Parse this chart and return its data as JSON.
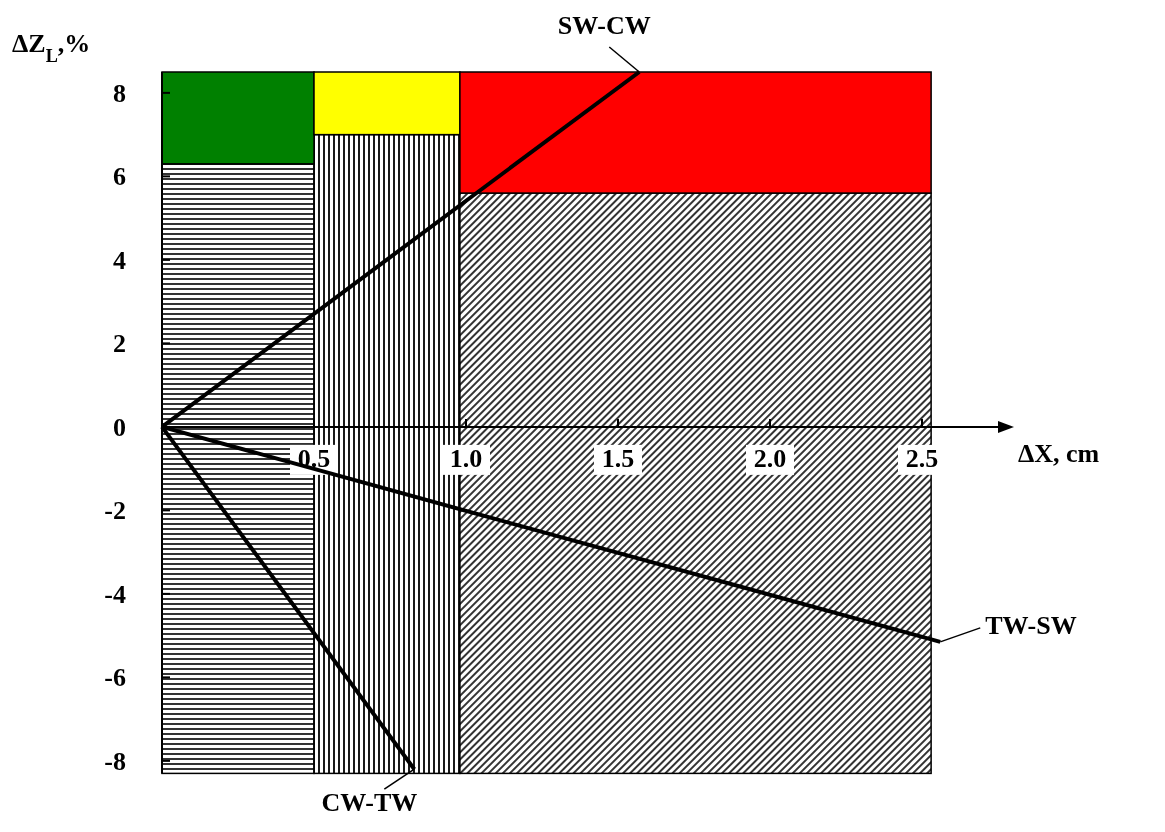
{
  "chart_data": {
    "type": "line",
    "xlabel": "ΔX, cm",
    "ylabel": "ΔZ$_{L}$,%",
    "xlim": [
      0,
      2.75
    ],
    "ylim": [
      -8.3,
      8.5
    ],
    "xticks": [
      0.5,
      {
        "value": 1,
        "label": "1.0"
      },
      1.5,
      {
        "value": 2,
        "label": "2.0"
      },
      2.5
    ],
    "yticks": [
      -8,
      -6,
      -4,
      -2,
      0,
      2,
      4,
      6,
      8
    ],
    "series": [
      {
        "type": "bar",
        "x": [
          0.25,
          0.74,
          1.755
        ],
        "values": [
          14.6,
          15.3,
          13.9
        ],
        "base": [
          -8.3,
          -8.3,
          -8.3
        ],
        "color": "#000000"
      },
      {
        "type": "bar",
        "x": [
          0.25,
          0.74,
          1.755
        ],
        "values": [
          2.2,
          1.5,
          2.9
        ],
        "base": [
          6.3,
          7,
          5.6
        ],
        "colors": [
          "#008000",
          "#ffff00",
          "#ff0000"
        ]
      },
      {
        "name": "SW-CW",
        "color": "#000000",
        "x": [
          0,
          1.57
        ],
        "values": [
          0,
          8.5
        ]
      },
      {
        "name": "TW-SW",
        "color": "#000000",
        "x": [
          0,
          2.56
        ],
        "values": [
          0,
          -5.15
        ]
      },
      {
        "name": "CW-TW",
        "color": "#000000",
        "x": [
          0,
          0.83
        ],
        "values": [
          0,
          -8.2
        ]
      }
    ],
    "grid": false,
    "marker": "none",
    "line_style": "solid"
  }
}
